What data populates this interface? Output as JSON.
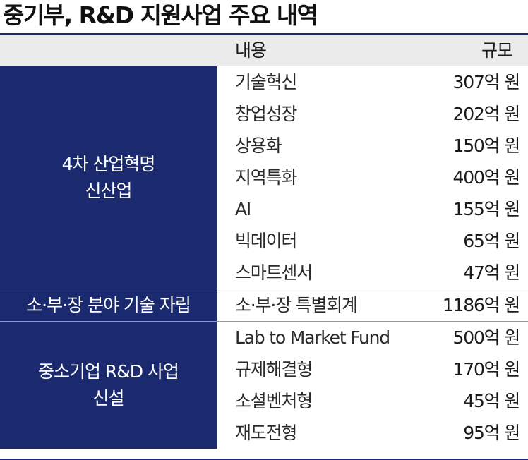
{
  "title": "중기부, R&D 지원사업 주요 내역",
  "header": {
    "content": "내용",
    "scale": "규모"
  },
  "groups": [
    {
      "label_lines": [
        "4차 산업혁명",
        "신산업"
      ],
      "rows": [
        {
          "name": "기술혁신",
          "value": "307억 원"
        },
        {
          "name": "창업성장",
          "value": "202억 원"
        },
        {
          "name": "상용화",
          "value": "150억 원"
        },
        {
          "name": "지역특화",
          "value": "400억 원"
        },
        {
          "name": "AI",
          "value": "155억 원"
        },
        {
          "name": "빅데이터",
          "value": "65억 원"
        },
        {
          "name": "스마트센서",
          "value": "47억 원"
        }
      ]
    },
    {
      "label_lines": [
        "소·부·장 분야 기술 자립"
      ],
      "rows": [
        {
          "name": "소·부·장 특별회계",
          "value": "1186억 원"
        }
      ]
    },
    {
      "label_lines": [
        "중소기업 R&D 사업",
        "신설"
      ],
      "rows": [
        {
          "name": "Lab to Market Fund",
          "value": "500억 원"
        },
        {
          "name": "규제해결형",
          "value": "170억 원"
        },
        {
          "name": "소셜벤처형",
          "value": "45억 원"
        },
        {
          "name": "재도전형",
          "value": "95억 원"
        }
      ]
    }
  ]
}
